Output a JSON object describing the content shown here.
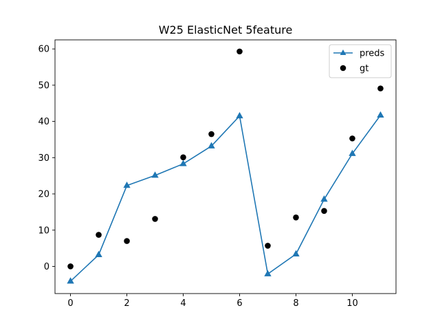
{
  "chart_data": {
    "type": "line",
    "title": "W25 ElasticNet 5feature",
    "xlabel": "",
    "ylabel": "",
    "xlim": [
      -0.55,
      11.55
    ],
    "ylim": [
      -7.5,
      62.5
    ],
    "xticks": [
      0,
      2,
      4,
      6,
      8,
      10
    ],
    "yticks": [
      0,
      10,
      20,
      30,
      40,
      50,
      60
    ],
    "grid": false,
    "legend_position": "top-right",
    "series": [
      {
        "name": "preds",
        "kind": "line",
        "marker": "triangle",
        "color": "#1f77b4",
        "x": [
          0,
          1,
          2,
          3,
          4,
          5,
          6,
          7,
          8,
          9,
          10,
          11
        ],
        "y": [
          -4.1,
          3.2,
          22.3,
          25.1,
          28.3,
          33.2,
          41.5,
          -2.1,
          3.4,
          18.5,
          31.1,
          41.7
        ]
      },
      {
        "name": "gt",
        "kind": "scatter",
        "marker": "circle",
        "color": "#000000",
        "x": [
          0,
          1,
          2,
          3,
          4,
          5,
          6,
          7,
          8,
          9,
          10,
          11
        ],
        "y": [
          0.0,
          8.7,
          7.0,
          13.1,
          30.1,
          36.5,
          59.3,
          5.7,
          13.5,
          15.3,
          35.3,
          49.1
        ]
      }
    ]
  }
}
